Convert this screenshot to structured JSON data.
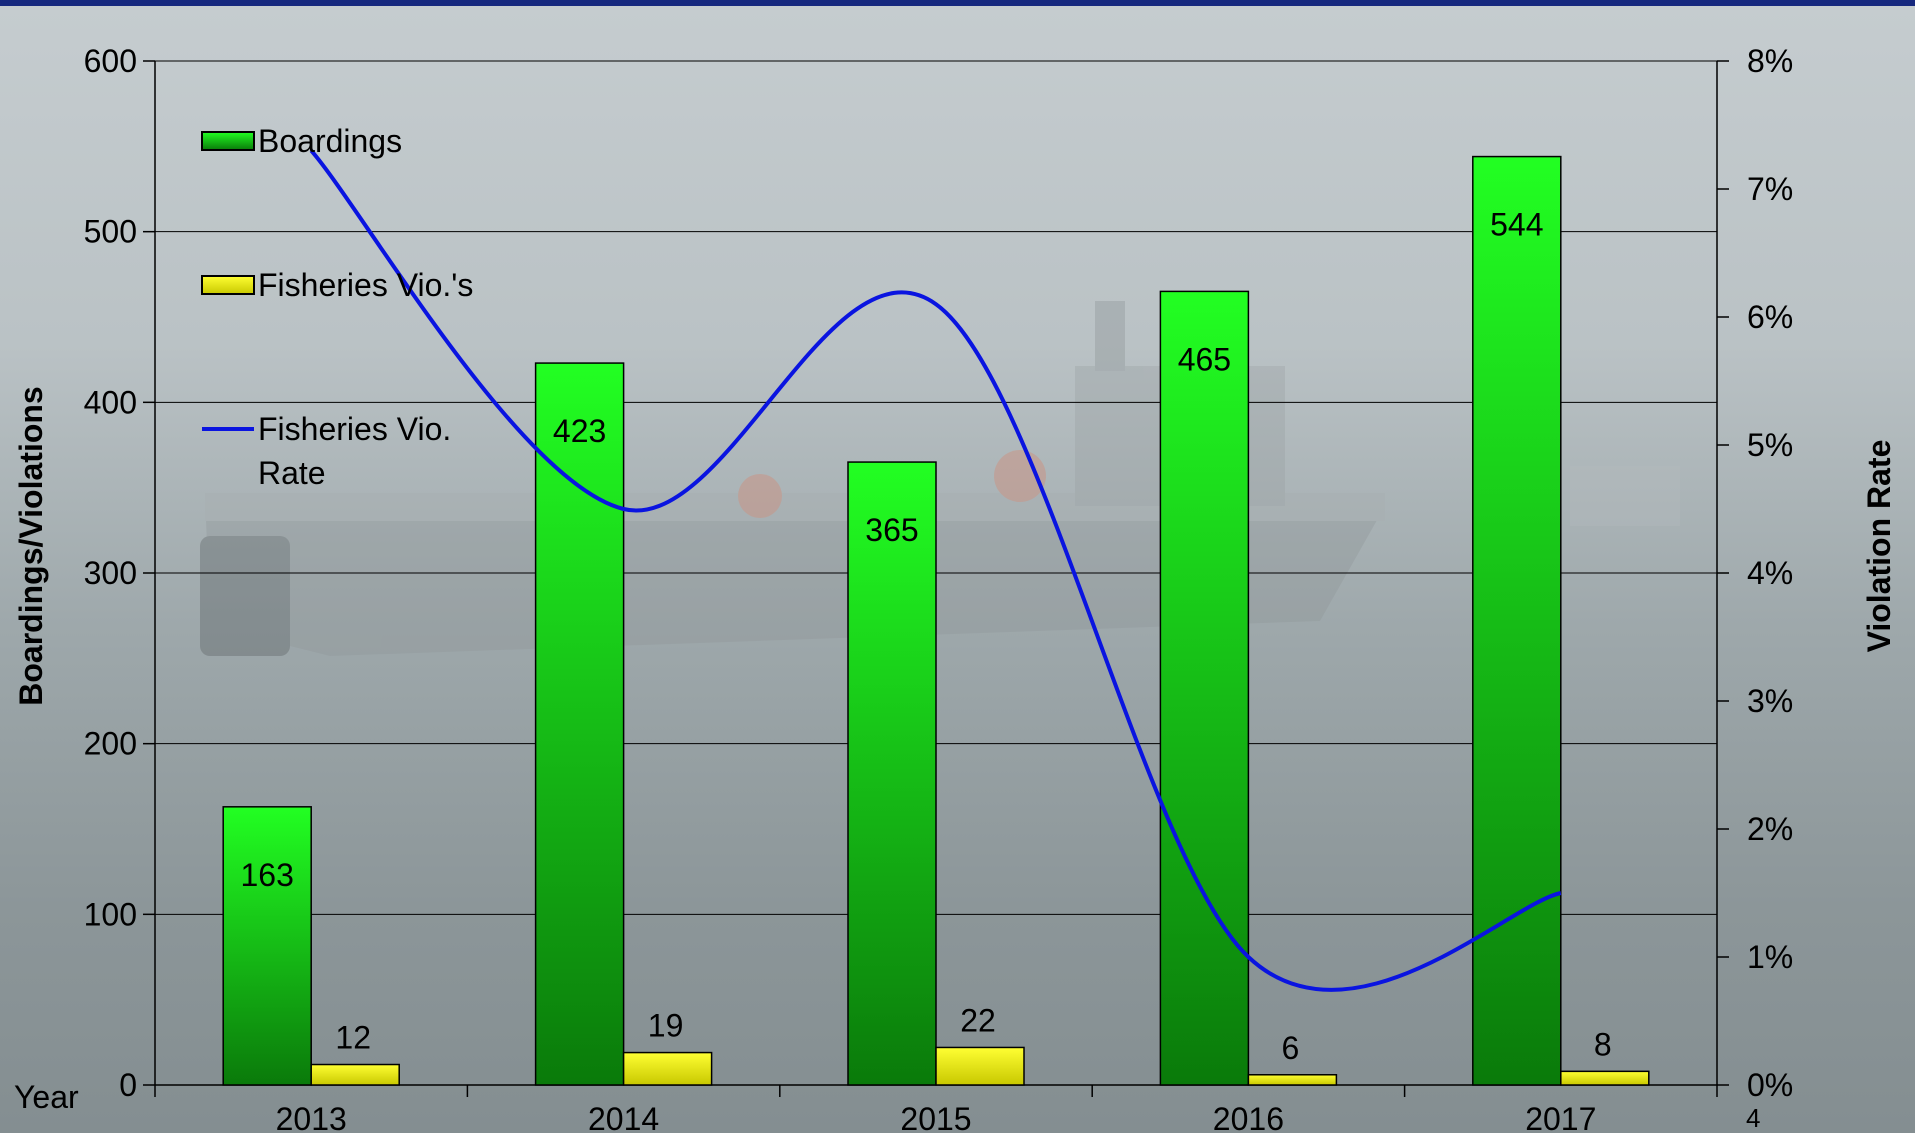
{
  "page_number": "4",
  "chart_data": {
    "type": "bar",
    "categories": [
      "2013",
      "2014",
      "2015",
      "2016",
      "2017"
    ],
    "xlabel": "Year",
    "ylabel": "Boardings/Violations",
    "y2label": "Violation Rate",
    "ylim": [
      0,
      600
    ],
    "yticks": [
      "0",
      "100",
      "200",
      "300",
      "400",
      "500",
      "600"
    ],
    "y2lim": [
      0,
      8
    ],
    "y2ticks": [
      "0%",
      "1%",
      "2%",
      "3%",
      "4%",
      "5%",
      "6%",
      "7%",
      "8%"
    ],
    "grid": true,
    "legend_position": "top-left",
    "series": [
      {
        "name": "Boardings",
        "type": "bar",
        "color": "#22dd22",
        "values": [
          163,
          423,
          365,
          465,
          544
        ],
        "labels": [
          "163",
          "423",
          "365",
          "465",
          "544"
        ]
      },
      {
        "name": "Fisheries Vio.'s",
        "type": "bar",
        "color": "#ffff00",
        "values": [
          12,
          19,
          22,
          6,
          8
        ],
        "labels": [
          "12",
          "19",
          "22",
          "6",
          "8"
        ]
      },
      {
        "name": "Fisheries Vio. Rate",
        "type": "line",
        "axis": "y2",
        "color": "#0a14e0",
        "values": [
          7.3,
          4.5,
          6.1,
          1.0,
          1.5
        ]
      }
    ]
  }
}
